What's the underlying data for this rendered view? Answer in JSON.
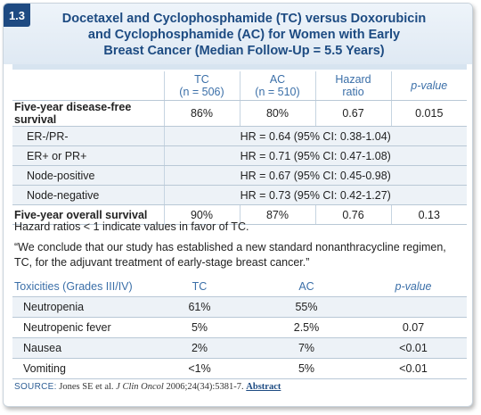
{
  "badge": "1.3",
  "title": {
    "line1": "Docetaxel and Cyclophosphamide (TC) versus Doxorubicin",
    "line2": "and Cyclophosphamide (AC) for Women with Early",
    "line3": "Breast Cancer (Median Follow-Up = 5.5 Years)"
  },
  "table1": {
    "headers": [
      {
        "line1": "TC",
        "line2": "(n = 506)"
      },
      {
        "line1": "AC",
        "line2": "(n = 510)"
      },
      {
        "line1": "Hazard",
        "line2": "ratio"
      },
      {
        "line1": "p-value",
        "line2": ""
      }
    ],
    "dfs": {
      "label": "Five-year disease-free survival",
      "values": [
        "86%",
        "80%",
        "0.67",
        "0.015"
      ]
    },
    "subgroups": [
      {
        "label": "ER-/PR-",
        "hr": "HR = 0.64 (95% CI: 0.38-1.04)"
      },
      {
        "label": "ER+ or PR+",
        "hr": "HR = 0.71 (95% CI: 0.47-1.08)"
      },
      {
        "label": "Node-positive",
        "hr": "HR = 0.67 (95% CI: 0.45-0.98)"
      },
      {
        "label": "Node-negative",
        "hr": "HR = 0.73 (95% CI: 0.42-1.27)"
      }
    ],
    "os": {
      "label": "Five-year overall survival",
      "values": [
        "90%",
        "87%",
        "0.76",
        "0.13"
      ]
    }
  },
  "note": "Hazard ratios < 1 indicate values in favor of TC.",
  "quote": "“We conclude that our study has established a new standard nonanthracycline regimen, TC, for the adjuvant treatment of early-stage breast cancer.”",
  "table2": {
    "headers": [
      "Toxicities (Grades III/IV)",
      "TC",
      "AC",
      "p-value"
    ],
    "rows": [
      {
        "label": "Neutropenia",
        "tc": "61%",
        "ac": "55%",
        "p": ""
      },
      {
        "label": "Neutropenic fever",
        "tc": "5%",
        "ac": "2.5%",
        "p": "0.07"
      },
      {
        "label": "Nausea",
        "tc": "2%",
        "ac": "7%",
        "p": "<0.01"
      },
      {
        "label": "Vomiting",
        "tc": "<1%",
        "ac": "5%",
        "p": "<0.01"
      }
    ]
  },
  "source": {
    "tag": "SOURCE:",
    "authors": "Jones SE et al.",
    "journal": "J Clin Oncol",
    "citation": "2006;24(34):5381-7.",
    "link": "Abstract"
  }
}
